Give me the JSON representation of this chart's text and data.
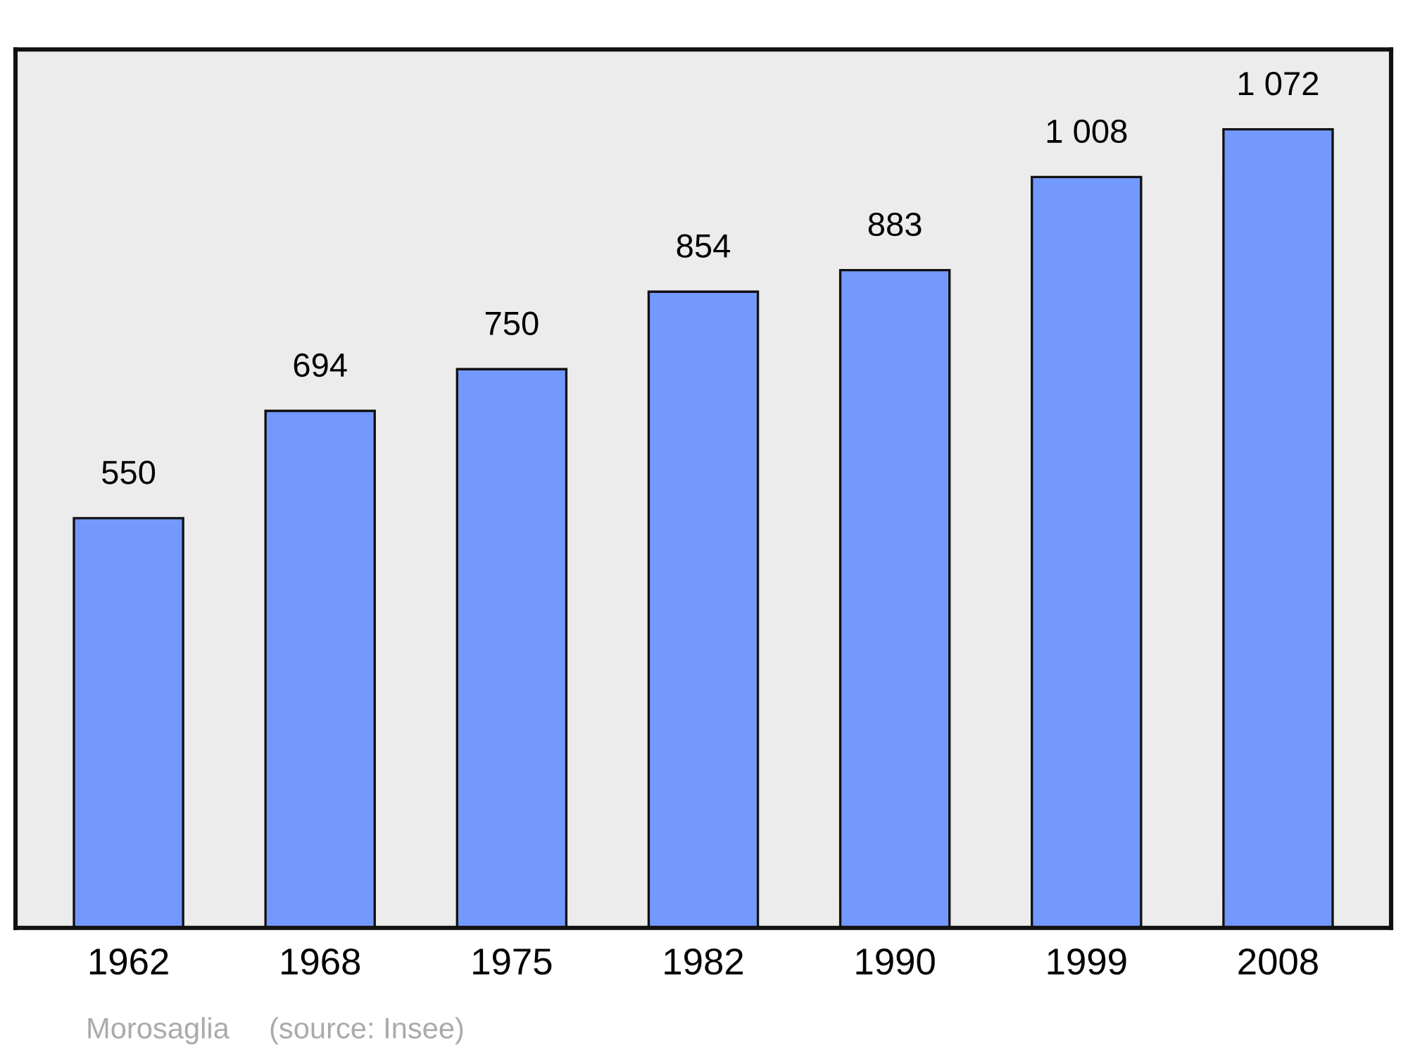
{
  "chart_data": {
    "type": "bar",
    "categories": [
      "1962",
      "1968",
      "1975",
      "1982",
      "1990",
      "1999",
      "2008"
    ],
    "values": [
      550,
      694,
      750,
      854,
      883,
      1008,
      1072
    ],
    "value_labels": [
      "550",
      "694",
      "750",
      "854",
      "883",
      "1 008",
      "1 072"
    ],
    "color": "#7399ff",
    "annotations": [
      "Morosaglia",
      "(source: Insee)"
    ],
    "tick_labels": "x",
    "grid": false,
    "legend": false
  }
}
